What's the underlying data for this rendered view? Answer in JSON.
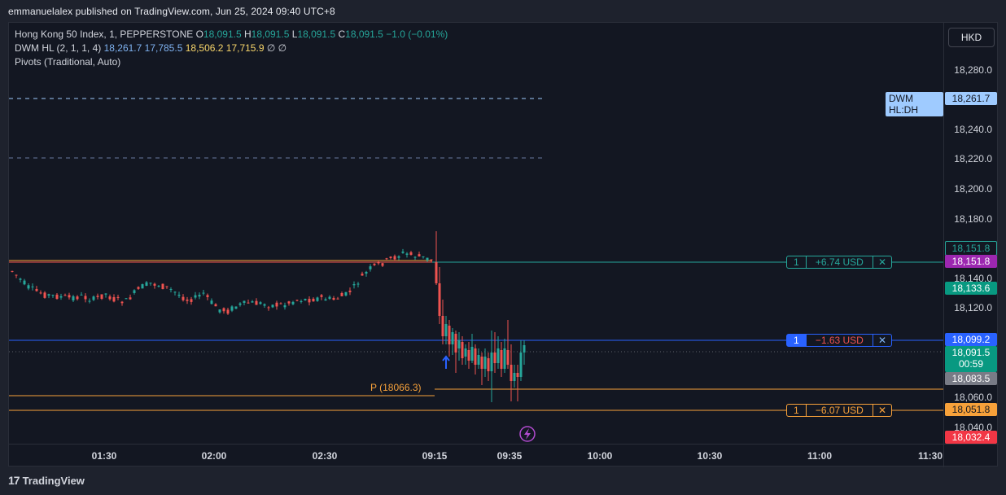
{
  "header": {
    "publisher_line": "emmanuelalex published on TradingView.com, Jun 25, 2024 09:40 UTC+8"
  },
  "legend": {
    "symbol": "Hong Kong 50 Index, 1, PEPPERSTONE",
    "o_label": "O",
    "o_value": "18,091.5",
    "h_label": "H",
    "h_value": "18,091.5",
    "l_label": "L",
    "l_value": "18,091.5",
    "c_label": "C",
    "c_value": "18,091.5",
    "change": "−1.0 (−0.01%)",
    "dwm_label": "DWM HL (2, 1, 1, 4)",
    "dwm_v1": "18,261.7",
    "dwm_v2": "17,785.5",
    "dwm_v3": "18,506.2",
    "dwm_v4": "17,715.9",
    "dwm_tail": "∅ ∅",
    "pivots_label": "Pivots (Traditional, Auto)"
  },
  "currency": "HKD",
  "yaxis": {
    "ticks": [
      "18,280.0",
      "18,240.0",
      "18,220.0",
      "18,200.0",
      "18,180.0",
      "18,140.0",
      "18,120.0",
      "18,060.0",
      "18,040.0"
    ]
  },
  "xaxis": {
    "ticks": [
      "01:30",
      "02:00",
      "02:30",
      "09:15",
      "09:35",
      "10:00",
      "10:30",
      "11:00",
      "11:30"
    ]
  },
  "price_tags": {
    "dwm_hl_dh_label": "DWM HL:DH",
    "dwm_hl_dh": "18,261.7",
    "tp_outline": "18,151.8",
    "tp_fill": "18,151.8",
    "pos_green": "18,133.6",
    "entry": "18,099.2",
    "last": "18,091.5",
    "countdown": "00:59",
    "gray": "18,083.5",
    "sl": "18,051.8",
    "low_red": "18,032.4"
  },
  "orders": {
    "tp": {
      "qty": "1",
      "value": "+6.74 USD",
      "close": "✕"
    },
    "entry": {
      "qty": "1",
      "value": "−1.63 USD",
      "close": "✕"
    },
    "sl": {
      "qty": "1",
      "value": "−6.07 USD",
      "close": "✕"
    }
  },
  "pivot_label": "P (18066.3)",
  "colors": {
    "up": "#26a69a",
    "down": "#ef5350",
    "entry": "#2962ff",
    "sl": "#f7a13a",
    "tp": "#26a69a"
  },
  "chart_data": {
    "type": "candlestick",
    "series": [
      {
        "values": []
      }
    ]
  },
  "footer": {
    "brand": "TradingView"
  }
}
